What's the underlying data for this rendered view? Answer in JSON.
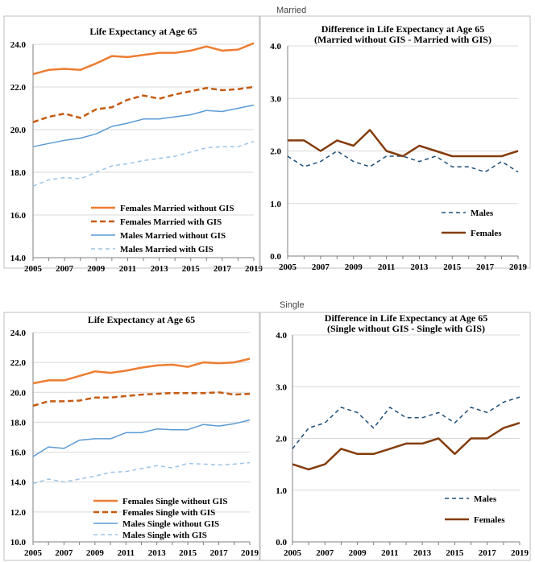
{
  "sections": {
    "married": "Married",
    "single": "Single"
  },
  "colors": {
    "females_no_gis": "#ed7d31",
    "females_gis": "#c55a11",
    "males_no_gis": "#5b9bd5",
    "males_gis": "#9dc3e6",
    "diff_males": "#1f4e79",
    "diff_females": "#843c0c"
  },
  "chart_data": [
    {
      "id": "married-le",
      "type": "line",
      "title": "Life Expectancy at Age 65",
      "x": [
        2005,
        2006,
        2007,
        2008,
        2009,
        2010,
        2011,
        2012,
        2013,
        2014,
        2015,
        2016,
        2017,
        2018,
        2019
      ],
      "xticks": [
        2005,
        2007,
        2009,
        2011,
        2013,
        2015,
        2017,
        2019
      ],
      "ylim": [
        14,
        24
      ],
      "yticks": [
        "14.0",
        "16.0",
        "18.0",
        "20.0",
        "22.0",
        "24.0"
      ],
      "series": [
        {
          "name": "Females Married without GIS",
          "color": "#ed7d31",
          "dash": "solid",
          "width": 2.5,
          "values": [
            22.6,
            22.8,
            22.85,
            22.8,
            23.1,
            23.45,
            23.4,
            23.5,
            23.6,
            23.6,
            23.7,
            23.9,
            23.7,
            23.75,
            24.05
          ]
        },
        {
          "name": "Females Married with GIS",
          "color": "#c55a11",
          "dash": "dashed",
          "width": 2.5,
          "values": [
            20.35,
            20.6,
            20.75,
            20.55,
            20.95,
            21.05,
            21.4,
            21.6,
            21.45,
            21.65,
            21.8,
            21.95,
            21.85,
            21.9,
            22.0
          ]
        },
        {
          "name": "Males Married without GIS",
          "color": "#5b9bd5",
          "dash": "solid",
          "width": 1.5,
          "values": [
            19.2,
            19.35,
            19.5,
            19.6,
            19.8,
            20.15,
            20.3,
            20.5,
            20.5,
            20.6,
            20.7,
            20.9,
            20.85,
            21.0,
            21.15
          ]
        },
        {
          "name": "Males Married with GIS",
          "color": "#9dc3e6",
          "dash": "dashed",
          "width": 1.5,
          "values": [
            17.35,
            17.65,
            17.75,
            17.7,
            18.0,
            18.3,
            18.4,
            18.55,
            18.65,
            18.75,
            18.95,
            19.15,
            19.2,
            19.2,
            19.45
          ]
        }
      ]
    },
    {
      "id": "married-diff",
      "type": "line",
      "title": "Difference in Life Expectancy at Age 65",
      "subtitle": "(Married without GIS - Married with GIS)",
      "x": [
        2005,
        2006,
        2007,
        2008,
        2009,
        2010,
        2011,
        2012,
        2013,
        2014,
        2015,
        2016,
        2017,
        2018,
        2019
      ],
      "xticks": [
        2005,
        2007,
        2009,
        2011,
        2013,
        2015,
        2017,
        2019
      ],
      "ylim": [
        0,
        4
      ],
      "yticks": [
        "0.0",
        "1.0",
        "2.0",
        "3.0",
        "4.0"
      ],
      "series": [
        {
          "name": "Males",
          "color": "#1f4e79",
          "dash": "dashed",
          "width": 1.5,
          "values": [
            1.9,
            1.7,
            1.8,
            2.0,
            1.8,
            1.7,
            1.9,
            1.9,
            1.8,
            1.9,
            1.7,
            1.7,
            1.6,
            1.8,
            1.6
          ]
        },
        {
          "name": "Females",
          "color": "#843c0c",
          "dash": "solid",
          "width": 2.5,
          "values": [
            2.2,
            2.2,
            2.0,
            2.2,
            2.1,
            2.4,
            2.0,
            1.9,
            2.1,
            2.0,
            1.9,
            1.9,
            1.9,
            1.9,
            2.0
          ]
        }
      ]
    },
    {
      "id": "single-le",
      "type": "line",
      "title": "Life Expectancy at Age 65",
      "x": [
        2005,
        2006,
        2007,
        2008,
        2009,
        2010,
        2011,
        2012,
        2013,
        2014,
        2015,
        2016,
        2017,
        2018,
        2019
      ],
      "xticks": [
        2005,
        2007,
        2009,
        2011,
        2013,
        2015,
        2017,
        2019
      ],
      "ylim": [
        10,
        24
      ],
      "yticks": [
        "10.0",
        "12.0",
        "14.0",
        "16.0",
        "18.0",
        "20.0",
        "22.0",
        "24.0"
      ],
      "series": [
        {
          "name": "Females Single without GIS",
          "color": "#ed7d31",
          "dash": "solid",
          "width": 2.5,
          "values": [
            20.6,
            20.8,
            20.8,
            21.1,
            21.4,
            21.3,
            21.45,
            21.65,
            21.8,
            21.85,
            21.7,
            22.0,
            21.95,
            22.0,
            22.25
          ]
        },
        {
          "name": "Females Single with GIS",
          "color": "#c55a11",
          "dash": "dashed",
          "width": 2.5,
          "values": [
            19.1,
            19.4,
            19.4,
            19.45,
            19.65,
            19.65,
            19.75,
            19.85,
            19.9,
            19.95,
            19.95,
            19.95,
            20.0,
            19.85,
            19.9
          ]
        },
        {
          "name": "Males Single without GIS",
          "color": "#5b9bd5",
          "dash": "solid",
          "width": 1.5,
          "values": [
            15.7,
            16.35,
            16.25,
            16.8,
            16.9,
            16.9,
            17.3,
            17.3,
            17.55,
            17.5,
            17.5,
            17.85,
            17.75,
            17.9,
            18.15
          ]
        },
        {
          "name": "Males Single with GIS",
          "color": "#9dc3e6",
          "dash": "dashed",
          "width": 1.5,
          "values": [
            13.9,
            14.2,
            14.0,
            14.2,
            14.4,
            14.65,
            14.7,
            14.9,
            15.1,
            14.95,
            15.25,
            15.2,
            15.15,
            15.2,
            15.3
          ]
        }
      ]
    },
    {
      "id": "single-diff",
      "type": "line",
      "title": "Difference in Life Expectancy at Age 65",
      "subtitle": "(Single without GIS - Single with GIS)",
      "x": [
        2005,
        2006,
        2007,
        2008,
        2009,
        2010,
        2011,
        2012,
        2013,
        2014,
        2015,
        2016,
        2017,
        2018,
        2019
      ],
      "xticks": [
        2005,
        2007,
        2009,
        2011,
        2013,
        2015,
        2017,
        2019
      ],
      "ylim": [
        0,
        4
      ],
      "yticks": [
        "0.0",
        "1.0",
        "2.0",
        "3.0",
        "4.0"
      ],
      "series": [
        {
          "name": "Males",
          "color": "#1f4e79",
          "dash": "dashed",
          "width": 1.5,
          "values": [
            1.8,
            2.2,
            2.3,
            2.6,
            2.5,
            2.2,
            2.6,
            2.4,
            2.4,
            2.5,
            2.3,
            2.6,
            2.5,
            2.7,
            2.8
          ]
        },
        {
          "name": "Females",
          "color": "#843c0c",
          "dash": "solid",
          "width": 2.5,
          "values": [
            1.5,
            1.4,
            1.5,
            1.8,
            1.7,
            1.7,
            1.8,
            1.9,
            1.9,
            2.0,
            1.7,
            2.0,
            2.0,
            2.2,
            2.3
          ]
        }
      ]
    }
  ]
}
